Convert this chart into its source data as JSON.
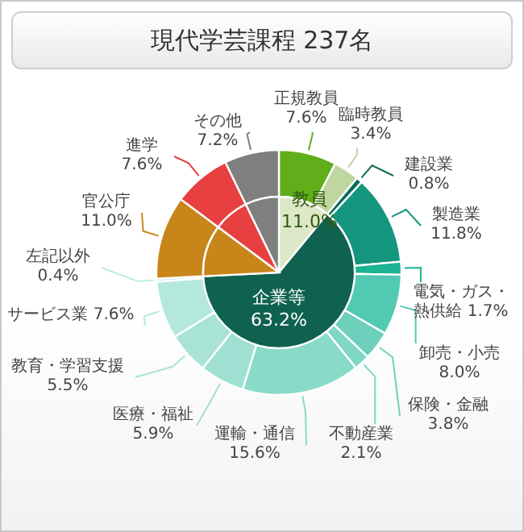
{
  "chart_data": [
    {
      "type": "donut",
      "title": "現代学芸課程 237名",
      "categories": [
        "正規教員",
        "臨時教員",
        "建設業",
        "製造業",
        "電気・ガス・熱供給",
        "卸売・小売",
        "保険・金融",
        "不動産業",
        "運輸・通信",
        "医療・福祉",
        "教育・学習支援",
        "サービス業",
        "左記以外",
        "官公庁",
        "進学",
        "その他"
      ],
      "values": [
        7.6,
        3.4,
        0.8,
        11.8,
        1.7,
        8.0,
        3.8,
        2.1,
        15.6,
        5.9,
        5.5,
        7.6,
        0.4,
        11.0,
        7.6,
        7.2
      ],
      "colors": [
        "#5fae1a",
        "#bfd6a0",
        "#0e6b5a",
        "#14967e",
        "#1ab394",
        "#52c9b3",
        "#6dd0bd",
        "#7fd7c6",
        "#8adac9",
        "#9fe0d2",
        "#a8e3d6",
        "#b4e8dd",
        "#c0ece3",
        "#c8861a",
        "#e84040",
        "#7f7f7f"
      ],
      "value_labels": [
        "7.6%",
        "3.4%",
        "0.8%",
        "11.8%",
        "1.7%",
        "8.0%",
        "3.8%",
        "2.1%",
        "15.6%",
        "5.9%",
        "5.5%",
        "7.6%",
        "0.4%",
        "11.0%",
        "7.6%",
        "7.2%"
      ]
    },
    {
      "type": "pie",
      "categories": [
        "教員",
        "企業等",
        null,
        null,
        null
      ],
      "values": [
        11.0,
        63.2,
        11.0,
        7.6,
        7.2
      ],
      "value_labels": [
        "11.0%",
        "63.2%",
        null,
        null,
        null
      ],
      "colors": [
        "#dde8c8",
        "#0f6150",
        "#c8861a",
        "#e84040",
        "#7f7f7f"
      ]
    }
  ]
}
